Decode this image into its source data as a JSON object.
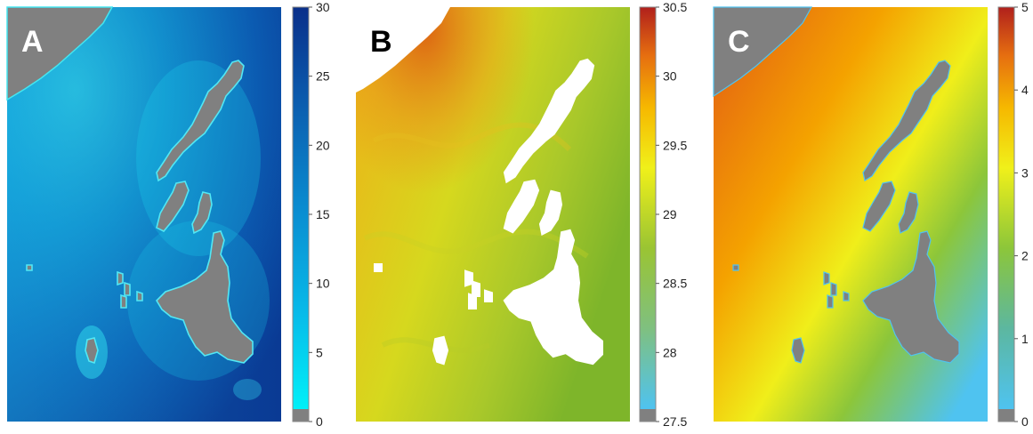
{
  "panels": [
    {
      "letter": "A",
      "colorbar": {
        "ticks": [
          "30",
          "25",
          "20",
          "15",
          "10",
          "5",
          "0"
        ],
        "min": 0,
        "max": 30,
        "colormap": [
          "#00f0f8",
          "#08b8e8",
          "#0a8cd0",
          "#0b5fb0",
          "#0a2f8a"
        ],
        "masked_color": "#808080"
      },
      "colors": {
        "land": "#808080",
        "sea_shallow": "#2ee6f0",
        "sea_deep": "#0a3a94",
        "letter": "#ffffff"
      }
    },
    {
      "letter": "B",
      "colorbar": {
        "ticks": [
          "30.5",
          "30",
          "29.5",
          "29",
          "28.5",
          "28",
          "27.5"
        ],
        "min": 27.5,
        "max": 30.5,
        "colormap": [
          "#4fc3f0",
          "#7fc080",
          "#9ac433",
          "#f0f01a",
          "#f6b800",
          "#e66e10",
          "#b0201c"
        ],
        "masked_color": "#808080"
      },
      "colors": {
        "land": "#ffffff",
        "warm": "#e07a16",
        "cool": "#86b628",
        "letter": "#000000"
      }
    },
    {
      "letter": "C",
      "colorbar": {
        "ticks": [
          "5",
          "4",
          "3",
          "2",
          "1",
          "0"
        ],
        "min": 0,
        "max": 5,
        "colormap": [
          "#4fc3f0",
          "#5cb7a0",
          "#8cc63a",
          "#f0f01a",
          "#f6b800",
          "#e66e10",
          "#b0201c"
        ],
        "masked_color": "#808080"
      },
      "colors": {
        "land": "#808080",
        "letter": "#ffffff"
      }
    }
  ]
}
